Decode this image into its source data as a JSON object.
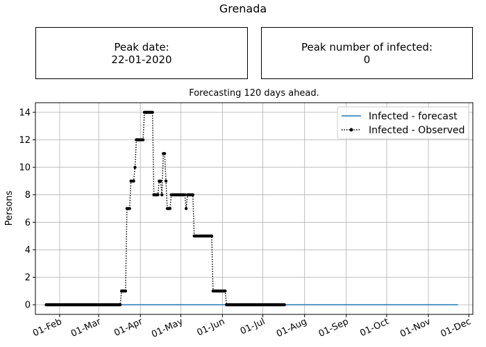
{
  "header": {
    "title": "Grenada",
    "peak_date_label": "Peak date:",
    "peak_date_value": "22-01-2020",
    "peak_infected_label": "Peak number of infected:",
    "peak_infected_value": "0"
  },
  "chart_data": {
    "type": "line",
    "title": "Forecasting 120 days ahead.",
    "xlabel": "",
    "ylabel": "Persons",
    "x_start": "2020-01-22",
    "x_range": [
      "2020-01-14",
      "2020-12-04"
    ],
    "ylim": [
      -0.7,
      14.7
    ],
    "y_ticks": [
      0,
      2,
      4,
      6,
      8,
      10,
      12,
      14
    ],
    "x_ticks": [
      {
        "label": "01-Feb",
        "date": "2020-02-01"
      },
      {
        "label": "01-Mar",
        "date": "2020-03-01"
      },
      {
        "label": "01-Apr",
        "date": "2020-04-01"
      },
      {
        "label": "01-May",
        "date": "2020-05-01"
      },
      {
        "label": "01-Jun",
        "date": "2020-06-01"
      },
      {
        "label": "01-Jul",
        "date": "2020-07-01"
      },
      {
        "label": "01-Aug",
        "date": "2020-08-01"
      },
      {
        "label": "01-Sep",
        "date": "2020-09-01"
      },
      {
        "label": "01-Oct",
        "date": "2020-10-01"
      },
      {
        "label": "01-Nov",
        "date": "2020-11-01"
      },
      {
        "label": "01-Dec",
        "date": "2020-12-01"
      }
    ],
    "grid": true,
    "legend_position": "top-right",
    "series": [
      {
        "name": "Infected - forecast",
        "style": "solid",
        "color": "#1f77b4",
        "x": [
          "2020-01-22",
          "2020-11-23"
        ],
        "y": [
          0,
          0
        ]
      },
      {
        "name": "Infected - Observed",
        "style": "dotted-markers",
        "color": "#000000",
        "values": [
          0,
          0,
          0,
          0,
          0,
          0,
          0,
          0,
          0,
          0,
          0,
          0,
          0,
          0,
          0,
          0,
          0,
          0,
          0,
          0,
          0,
          0,
          0,
          0,
          0,
          0,
          0,
          0,
          0,
          0,
          0,
          0,
          0,
          0,
          0,
          0,
          0,
          0,
          0,
          0,
          0,
          0,
          0,
          0,
          0,
          0,
          0,
          0,
          0,
          0,
          0,
          0,
          0,
          0,
          0,
          0,
          1,
          1,
          1,
          1,
          7,
          7,
          7,
          9,
          9,
          9,
          10,
          12,
          12,
          12,
          12,
          12,
          12,
          14,
          14,
          14,
          14,
          14,
          14,
          14,
          8,
          8,
          8,
          8,
          9,
          9,
          8,
          11,
          11,
          9,
          7,
          7,
          7,
          8,
          8,
          8,
          8,
          8,
          8,
          8,
          8,
          8,
          8,
          8,
          7,
          8,
          8,
          8,
          8,
          8,
          5,
          5,
          5,
          5,
          5,
          5,
          5,
          5,
          5,
          5,
          5,
          5,
          5,
          5,
          1,
          1,
          1,
          1,
          1,
          1,
          1,
          1,
          1,
          1,
          0,
          0,
          0,
          0,
          0,
          0,
          0,
          0,
          0,
          0,
          0,
          0,
          0,
          0,
          0,
          0,
          0,
          0,
          0,
          0,
          0,
          0,
          0,
          0,
          0,
          0,
          0,
          0,
          0,
          0,
          0,
          0,
          0,
          0,
          0,
          0,
          0,
          0,
          0,
          0,
          0,
          0,
          0,
          0
        ]
      }
    ]
  }
}
